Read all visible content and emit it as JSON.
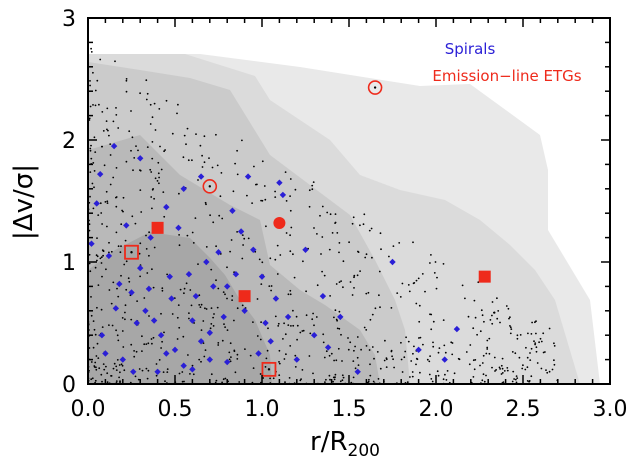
{
  "chart_data": {
    "type": "scatter",
    "xlim": [
      0,
      3
    ],
    "ylim": [
      0,
      3
    ],
    "x_ticks": [
      "0.0",
      "0.5",
      "1.0",
      "1.5",
      "2.0",
      "2.5",
      "3.0"
    ],
    "y_ticks": [
      "0",
      "1",
      "2",
      "3"
    ],
    "xlabel": "r/R₂₀₀",
    "xlabel_main": "r/R",
    "xlabel_sub": "200",
    "ylabel": "|Δv/σ|",
    "grid": false,
    "legend_position": "top-right",
    "legend": [
      {
        "label": "Spirals",
        "color": "#2a1fd6"
      },
      {
        "label": "Emission−line ETGs",
        "color": "#ee2a1b"
      }
    ],
    "series": [
      {
        "name": "Spirals",
        "marker": "diamond",
        "color": "#2a1fd6",
        "points": [
          [
            0.15,
            1.95
          ],
          [
            0.07,
            1.72
          ],
          [
            0.05,
            1.48
          ],
          [
            0.02,
            1.15
          ],
          [
            0.12,
            1.05
          ],
          [
            0.18,
            0.82
          ],
          [
            0.25,
            0.75
          ],
          [
            0.3,
            0.95
          ],
          [
            0.35,
            0.78
          ],
          [
            0.33,
            0.6
          ],
          [
            0.38,
            0.52
          ],
          [
            0.42,
            0.4
          ],
          [
            0.45,
            0.25
          ],
          [
            0.5,
            0.28
          ],
          [
            0.55,
            0.15
          ],
          [
            0.6,
            0.52
          ],
          [
            0.65,
            0.35
          ],
          [
            0.7,
            0.42
          ],
          [
            0.72,
            0.8
          ],
          [
            0.68,
            1.0
          ],
          [
            0.75,
            1.08
          ],
          [
            0.8,
            0.8
          ],
          [
            0.85,
            0.9
          ],
          [
            0.88,
            1.25
          ],
          [
            0.9,
            0.6
          ],
          [
            0.95,
            1.1
          ],
          [
            1.0,
            0.88
          ],
          [
            1.02,
            0.5
          ],
          [
            1.05,
            0.35
          ],
          [
            1.08,
            0.7
          ],
          [
            0.92,
            1.7
          ],
          [
            0.55,
            1.6
          ],
          [
            0.45,
            1.45
          ],
          [
            0.65,
            1.7
          ],
          [
            0.3,
            1.85
          ],
          [
            0.22,
            1.3
          ],
          [
            0.36,
            1.2
          ],
          [
            0.28,
            0.5
          ],
          [
            0.48,
            0.7
          ],
          [
            0.58,
            0.9
          ],
          [
            0.1,
            0.25
          ],
          [
            0.2,
            0.2
          ],
          [
            0.4,
            0.1
          ],
          [
            0.6,
            0.12
          ],
          [
            0.8,
            0.18
          ],
          [
            1.15,
            0.55
          ],
          [
            1.2,
            0.2
          ],
          [
            1.3,
            0.4
          ],
          [
            1.45,
            0.55
          ],
          [
            1.38,
            0.3
          ],
          [
            1.1,
            1.65
          ],
          [
            1.12,
            1.55
          ],
          [
            1.25,
            1.1
          ],
          [
            1.35,
            0.72
          ],
          [
            1.55,
            0.1
          ],
          [
            1.75,
            1.0
          ],
          [
            1.9,
            0.28
          ],
          [
            2.12,
            0.45
          ],
          [
            2.05,
            0.2
          ],
          [
            1.48,
            -0.02
          ],
          [
            0.7,
            0.2
          ],
          [
            0.78,
            0.55
          ],
          [
            0.16,
            0.62
          ],
          [
            0.08,
            0.4
          ],
          [
            0.26,
            0.1
          ],
          [
            0.47,
            0.88
          ],
          [
            0.62,
            0.72
          ],
          [
            0.98,
            0.25
          ],
          [
            0.83,
            1.42
          ],
          [
            0.52,
            1.28
          ]
        ]
      },
      {
        "name": "Emission-line ETGs (filled square)",
        "marker": "filled-square",
        "color": "#ee2a1b",
        "points": [
          [
            0.4,
            1.28
          ],
          [
            0.9,
            0.72
          ],
          [
            2.28,
            0.88
          ]
        ]
      },
      {
        "name": "Emission-line ETGs (open square)",
        "marker": "open-square",
        "color": "#ee2a1b",
        "points": [
          [
            0.25,
            1.08
          ],
          [
            1.04,
            0.12
          ]
        ]
      },
      {
        "name": "Emission-line ETGs (open circle)",
        "marker": "open-circle",
        "color": "#ee2a1b",
        "points": [
          [
            0.7,
            1.62
          ],
          [
            1.65,
            2.43
          ]
        ]
      },
      {
        "name": "Emission-line ETGs (filled circle)",
        "marker": "filled-circle",
        "color": "#ee2a1b",
        "points": [
          [
            1.1,
            1.32
          ]
        ]
      }
    ],
    "background_points_color": "#000000",
    "contour_colors": [
      "#e9e9e9",
      "#dbdbdb",
      "#cbcbcb",
      "#b9b9b9",
      "#a7a7a7"
    ]
  }
}
